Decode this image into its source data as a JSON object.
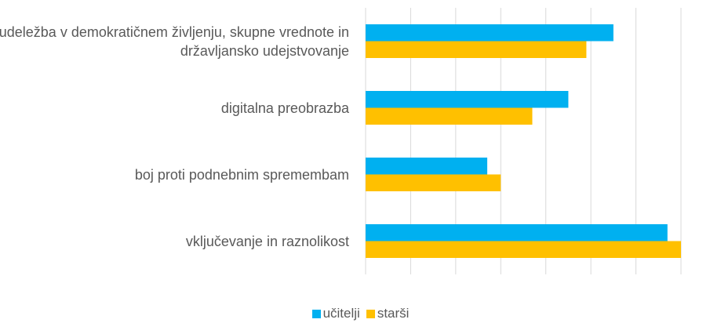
{
  "chart_data": {
    "type": "hbar",
    "categories": [
      "udeležba v demokratičnem življenju, skupne vrednote in državljansko udejstvovanje",
      "digitalna preobrazba",
      "boj proti podnebnim spremembam",
      "vključevanje in raznolikost"
    ],
    "series": [
      {
        "name": "učitelji",
        "color": "#00b0f0",
        "values": [
          5.5,
          4.5,
          2.7,
          6.7
        ]
      },
      {
        "name": "starši",
        "color": "#ffc000",
        "values": [
          4.9,
          3.7,
          3.0,
          7.0
        ]
      }
    ],
    "xlim": [
      0,
      7
    ],
    "xticks": [
      0,
      1,
      2,
      3,
      4,
      5,
      6,
      7
    ],
    "grid": true,
    "legend": "bottom"
  }
}
